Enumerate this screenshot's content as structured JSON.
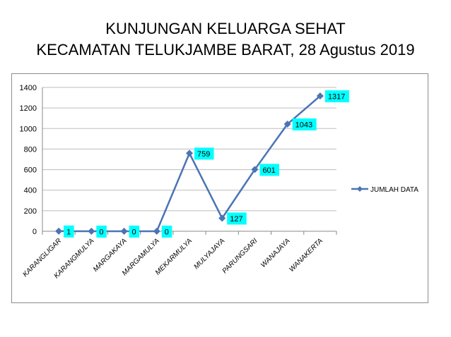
{
  "title": {
    "line1": "KUNJUNGAN KELUARGA SEHAT",
    "line2": "KECAMATAN TELUKJAMBE BARAT, 28 Agustus  2019"
  },
  "colors": {
    "series": "#4a74b4",
    "label_bg": "#00ffff",
    "grid": "#bdbdbd",
    "axis": "#888888"
  },
  "chart_data": {
    "type": "line",
    "categories": [
      "KARANGLIGAR",
      "KARANGMULYA",
      "MARGAKAYA",
      "MARGAMULYA",
      "MEKARMULYA",
      "MULYAJAYA",
      "PARUNGSARI",
      "WANAJAYA",
      "WANAKERTA"
    ],
    "series": [
      {
        "name": "JUMLAH DATA",
        "values": [
          1,
          0,
          0,
          0,
          759,
          127,
          601,
          1043,
          1317
        ],
        "labels": [
          "1",
          "0",
          "0",
          "0",
          "759",
          "127",
          "601",
          "1043",
          "1317"
        ]
      }
    ],
    "yticks": [
      "0",
      "200",
      "400",
      "600",
      "800",
      "1000",
      "1200",
      "1400"
    ],
    "ylim": [
      0,
      1400
    ],
    "grid": true,
    "legend_position": "right"
  }
}
